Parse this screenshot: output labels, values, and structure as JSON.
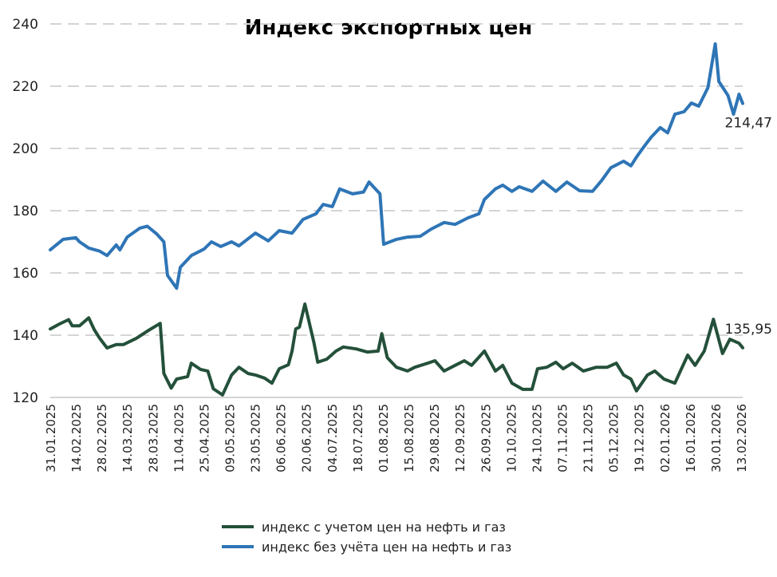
{
  "chart_data": {
    "type": "line",
    "title": "Индекс экспортных цен",
    "xlabel": "",
    "ylabel": "",
    "ylim": [
      120,
      240
    ],
    "yticks": [
      120,
      140,
      160,
      180,
      200,
      220,
      240
    ],
    "grid": "horizontal dashed",
    "x_start_date": "31.01.2025",
    "x_days_total": 378,
    "xtick_labels": [
      "31.01.2025",
      "14.02.2025",
      "28.02.2025",
      "14.03.2025",
      "28.03.2025",
      "11.04.2025",
      "25.04.2025",
      "09.05.2025",
      "23.05.2025",
      "06.06.2025",
      "20.06.2025",
      "04.07.2025",
      "18.07.2025",
      "01.08.2025",
      "15.08.2025",
      "29.08.2025",
      "12.09.2025",
      "26.09.2025",
      "10.10.2025",
      "24.10.2025",
      "07.11.2025",
      "21.11.2025",
      "05.12.2025",
      "19.12.2025",
      "02.01.2026",
      "16.01.2026",
      "30.01.2026",
      "13.02.2026"
    ],
    "legend_position": "bottom",
    "series": [
      {
        "name": "индекс с учетом цен на нефть и газ",
        "color": "#24503a",
        "end_label": "135,95",
        "points": [
          [
            0,
            142
          ],
          [
            5,
            143.6
          ],
          [
            10,
            145
          ],
          [
            12,
            143
          ],
          [
            16,
            143
          ],
          [
            21,
            145.6
          ],
          [
            24,
            141.8
          ],
          [
            27,
            139
          ],
          [
            31,
            135.9
          ],
          [
            36,
            137
          ],
          [
            40,
            137
          ],
          [
            47,
            139
          ],
          [
            53,
            141.3
          ],
          [
            60,
            143.8
          ],
          [
            62,
            127.7
          ],
          [
            66,
            123
          ],
          [
            69,
            125.9
          ],
          [
            75,
            126.7
          ],
          [
            77,
            131
          ],
          [
            82,
            129
          ],
          [
            86,
            128.5
          ],
          [
            89,
            122.8
          ],
          [
            94,
            120.8
          ],
          [
            99,
            127.2
          ],
          [
            103,
            129.7
          ],
          [
            108,
            127.7
          ],
          [
            112,
            127.2
          ],
          [
            117,
            126.2
          ],
          [
            121,
            124.6
          ],
          [
            125,
            129.2
          ],
          [
            130,
            130.5
          ],
          [
            132,
            134.9
          ],
          [
            134,
            142
          ],
          [
            136,
            142.6
          ],
          [
            139,
            150
          ],
          [
            144,
            137.4
          ],
          [
            146,
            131.3
          ],
          [
            151,
            132.3
          ],
          [
            156,
            134.9
          ],
          [
            160,
            136.2
          ],
          [
            167,
            135.6
          ],
          [
            173,
            134.6
          ],
          [
            179,
            134.9
          ],
          [
            181,
            140.5
          ],
          [
            184,
            132.8
          ],
          [
            189,
            129.7
          ],
          [
            195,
            128.5
          ],
          [
            199,
            129.7
          ],
          [
            206,
            131
          ],
          [
            210,
            131.8
          ],
          [
            215,
            128.5
          ],
          [
            221,
            130.3
          ],
          [
            226,
            131.8
          ],
          [
            230,
            130.3
          ],
          [
            237,
            134.9
          ],
          [
            243,
            128.5
          ],
          [
            247,
            130.3
          ],
          [
            252,
            124.6
          ],
          [
            258,
            122.6
          ],
          [
            263,
            122.6
          ],
          [
            266,
            129.2
          ],
          [
            271,
            129.7
          ],
          [
            276,
            131.3
          ],
          [
            280,
            129.2
          ],
          [
            285,
            131
          ],
          [
            291,
            128.5
          ],
          [
            298,
            129.7
          ],
          [
            304,
            129.7
          ],
          [
            309,
            131
          ],
          [
            313,
            127.2
          ],
          [
            317,
            125.9
          ],
          [
            320,
            122.1
          ],
          [
            326,
            127.2
          ],
          [
            330,
            128.5
          ],
          [
            335,
            125.9
          ],
          [
            341,
            124.6
          ],
          [
            344,
            128.5
          ],
          [
            348,
            133.6
          ],
          [
            352,
            130.3
          ],
          [
            357,
            134.9
          ],
          [
            362,
            145.1
          ],
          [
            367,
            134.1
          ],
          [
            371,
            138.7
          ],
          [
            376,
            137.4
          ],
          [
            378,
            135.95
          ]
        ]
      },
      {
        "name": "индекс без учёта цен на нефть и газ",
        "color": "#2e75b6",
        "end_label": "214,47",
        "points": [
          [
            0,
            167.4
          ],
          [
            7,
            170.8
          ],
          [
            14,
            171.3
          ],
          [
            16,
            170
          ],
          [
            21,
            168
          ],
          [
            27,
            167
          ],
          [
            31,
            165.6
          ],
          [
            36,
            169
          ],
          [
            38,
            167.4
          ],
          [
            42,
            171.5
          ],
          [
            49,
            174.4
          ],
          [
            53,
            175
          ],
          [
            58,
            172.6
          ],
          [
            62,
            170
          ],
          [
            64,
            159.2
          ],
          [
            69,
            155.1
          ],
          [
            71,
            161.8
          ],
          [
            77,
            165.6
          ],
          [
            84,
            167.7
          ],
          [
            88,
            170
          ],
          [
            93,
            168.5
          ],
          [
            99,
            170
          ],
          [
            103,
            168.7
          ],
          [
            112,
            172.8
          ],
          [
            119,
            170.3
          ],
          [
            125,
            173.6
          ],
          [
            132,
            172.8
          ],
          [
            138,
            177.2
          ],
          [
            145,
            179
          ],
          [
            149,
            182
          ],
          [
            154,
            181.3
          ],
          [
            158,
            187
          ],
          [
            165,
            185.4
          ],
          [
            171,
            186
          ],
          [
            174,
            189.2
          ],
          [
            180,
            185.4
          ],
          [
            182,
            169.2
          ],
          [
            189,
            170.8
          ],
          [
            195,
            171.5
          ],
          [
            202,
            171.8
          ],
          [
            208,
            174.1
          ],
          [
            215,
            176.2
          ],
          [
            221,
            175.6
          ],
          [
            228,
            177.7
          ],
          [
            234,
            179
          ],
          [
            237,
            183.6
          ],
          [
            243,
            187
          ],
          [
            247,
            188.2
          ],
          [
            252,
            186.2
          ],
          [
            256,
            187.7
          ],
          [
            263,
            186.2
          ],
          [
            269,
            189.5
          ],
          [
            276,
            186.2
          ],
          [
            282,
            189.2
          ],
          [
            289,
            186.4
          ],
          [
            296,
            186.2
          ],
          [
            301,
            189.7
          ],
          [
            306,
            193.8
          ],
          [
            313,
            195.9
          ],
          [
            317,
            194.4
          ],
          [
            320,
            197.2
          ],
          [
            324,
            200.5
          ],
          [
            328,
            203.6
          ],
          [
            333,
            206.7
          ],
          [
            337,
            205
          ],
          [
            341,
            211
          ],
          [
            346,
            211.8
          ],
          [
            350,
            214.6
          ],
          [
            354,
            213.6
          ],
          [
            359,
            219.5
          ],
          [
            363,
            233.6
          ],
          [
            365,
            221.5
          ],
          [
            370,
            217
          ],
          [
            373,
            211
          ],
          [
            376,
            217.4
          ],
          [
            378,
            214.47
          ]
        ]
      }
    ]
  }
}
